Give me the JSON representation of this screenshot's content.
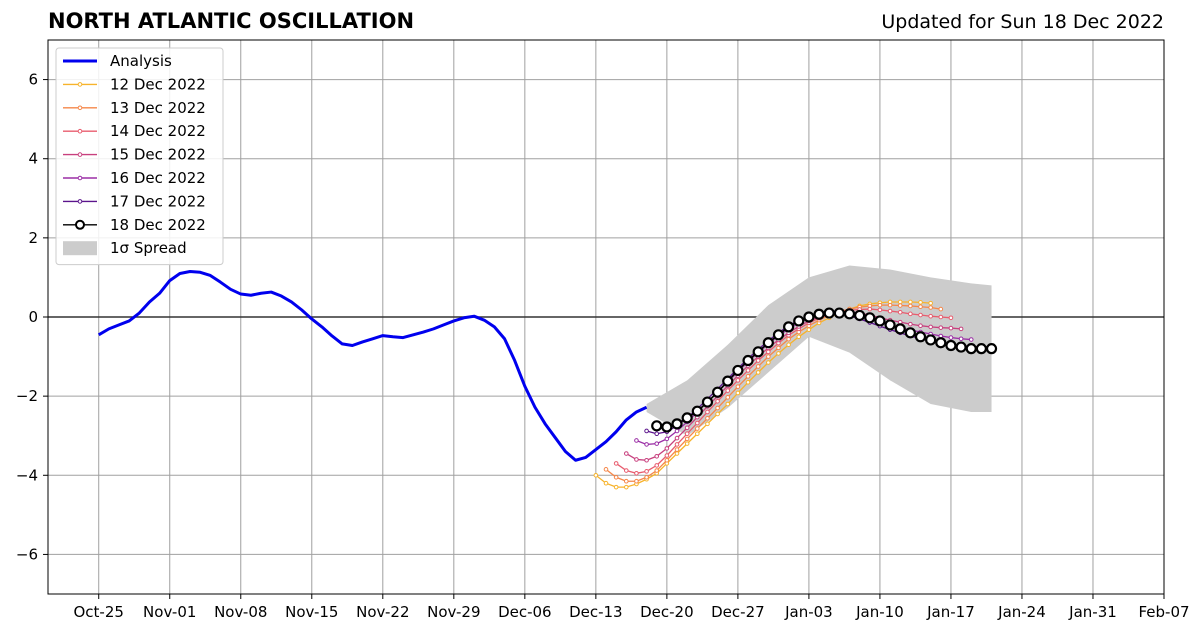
{
  "chart_data": {
    "type": "line",
    "title": "NORTH ATLANTIC OSCILLATION",
    "subtitle": "Updated for Sun 18 Dec 2022",
    "xlabel": "",
    "ylabel": "",
    "x_range": [
      "2022-10-20",
      "2023-02-07"
    ],
    "ylim": [
      -7,
      7
    ],
    "x_ticks": [
      "Oct-25",
      "Nov-01",
      "Nov-08",
      "Nov-15",
      "Nov-22",
      "Nov-29",
      "Dec-06",
      "Dec-13",
      "Dec-20",
      "Dec-27",
      "Jan-03",
      "Jan-10",
      "Jan-17",
      "Jan-24",
      "Jan-31",
      "Feb-07"
    ],
    "y_ticks": [
      -6,
      -4,
      -2,
      0,
      2,
      4,
      6
    ],
    "grid": true,
    "legend_position": "top-left",
    "legend_spread_label": "1σ Spread",
    "spread": {
      "x": [
        "2022-12-18",
        "2022-12-22",
        "2022-12-26",
        "2022-12-30",
        "2023-01-03",
        "2023-01-07",
        "2023-01-11",
        "2023-01-15",
        "2023-01-19",
        "2023-01-21"
      ],
      "upper": [
        -2.2,
        -1.6,
        -0.7,
        0.3,
        1.0,
        1.3,
        1.2,
        1.0,
        0.85,
        0.8
      ],
      "lower": [
        -2.4,
        -3.0,
        -2.3,
        -1.4,
        -0.5,
        -0.9,
        -1.6,
        -2.2,
        -2.4,
        -2.4
      ],
      "color": "#cccccc"
    },
    "analysis": {
      "name": "Analysis",
      "color": "#0000ee",
      "x": [
        "2022-10-25",
        "2022-10-26",
        "2022-10-27",
        "2022-10-28",
        "2022-10-29",
        "2022-10-30",
        "2022-10-31",
        "2022-11-01",
        "2022-11-02",
        "2022-11-03",
        "2022-11-04",
        "2022-11-05",
        "2022-11-06",
        "2022-11-07",
        "2022-11-08",
        "2022-11-09",
        "2022-11-10",
        "2022-11-11",
        "2022-11-12",
        "2022-11-13",
        "2022-11-14",
        "2022-11-15",
        "2022-11-16",
        "2022-11-17",
        "2022-11-18",
        "2022-11-19",
        "2022-11-20",
        "2022-11-21",
        "2022-11-22",
        "2022-11-23",
        "2022-11-24",
        "2022-11-25",
        "2022-11-26",
        "2022-11-27",
        "2022-11-28",
        "2022-11-29",
        "2022-11-30",
        "2022-12-01",
        "2022-12-02",
        "2022-12-03",
        "2022-12-04",
        "2022-12-05",
        "2022-12-06",
        "2022-12-07",
        "2022-12-08",
        "2022-12-09",
        "2022-12-10",
        "2022-12-11",
        "2022-12-12",
        "2022-12-13",
        "2022-12-14",
        "2022-12-15",
        "2022-12-16",
        "2022-12-17",
        "2022-12-18"
      ],
      "y": [
        -0.45,
        -0.3,
        -0.2,
        -0.1,
        0.1,
        0.38,
        0.6,
        0.92,
        1.1,
        1.15,
        1.13,
        1.05,
        0.88,
        0.7,
        0.58,
        0.55,
        0.6,
        0.63,
        0.53,
        0.38,
        0.18,
        -0.05,
        -0.25,
        -0.48,
        -0.68,
        -0.72,
        -0.63,
        -0.55,
        -0.47,
        -0.5,
        -0.52,
        -0.45,
        -0.38,
        -0.3,
        -0.2,
        -0.1,
        -0.02,
        0.02,
        -0.08,
        -0.25,
        -0.55,
        -1.1,
        -1.75,
        -2.28,
        -2.7,
        -3.05,
        -3.4,
        -3.62,
        -3.55,
        -3.35,
        -3.15,
        -2.9,
        -2.6,
        -2.4,
        -2.28
      ]
    },
    "series": [
      {
        "name": "12 Dec 2022",
        "color": "#f7b32b",
        "x": [
          "2022-12-13",
          "2022-12-14",
          "2022-12-15",
          "2022-12-16",
          "2022-12-17",
          "2022-12-18",
          "2022-12-19",
          "2022-12-20",
          "2022-12-21",
          "2022-12-22",
          "2022-12-23",
          "2022-12-24",
          "2022-12-25",
          "2022-12-26",
          "2022-12-27",
          "2022-12-28",
          "2022-12-29",
          "2022-12-30",
          "2022-12-31",
          "2023-01-01",
          "2023-01-02",
          "2023-01-03",
          "2023-01-04",
          "2023-01-05",
          "2023-01-06",
          "2023-01-07",
          "2023-01-08",
          "2023-01-09",
          "2023-01-10",
          "2023-01-11",
          "2023-01-12",
          "2023-01-13",
          "2023-01-14",
          "2023-01-15"
        ],
        "y": [
          -4.0,
          -4.2,
          -4.3,
          -4.3,
          -4.22,
          -4.1,
          -3.95,
          -3.7,
          -3.45,
          -3.2,
          -2.95,
          -2.7,
          -2.45,
          -2.2,
          -1.92,
          -1.65,
          -1.4,
          -1.15,
          -0.92,
          -0.7,
          -0.5,
          -0.32,
          -0.15,
          -0.02,
          0.1,
          0.2,
          0.28,
          0.33,
          0.36,
          0.38,
          0.38,
          0.38,
          0.37,
          0.35
        ]
      },
      {
        "name": "13 Dec 2022",
        "color": "#f5874a",
        "x": [
          "2022-12-14",
          "2022-12-15",
          "2022-12-16",
          "2022-12-17",
          "2022-12-18",
          "2022-12-19",
          "2022-12-20",
          "2022-12-21",
          "2022-12-22",
          "2022-12-23",
          "2022-12-24",
          "2022-12-25",
          "2022-12-26",
          "2022-12-27",
          "2022-12-28",
          "2022-12-29",
          "2022-12-30",
          "2022-12-31",
          "2023-01-01",
          "2023-01-02",
          "2023-01-03",
          "2023-01-04",
          "2023-01-05",
          "2023-01-06",
          "2023-01-07",
          "2023-01-08",
          "2023-01-09",
          "2023-01-10",
          "2023-01-11",
          "2023-01-12",
          "2023-01-13",
          "2023-01-14",
          "2023-01-15",
          "2023-01-16"
        ],
        "y": [
          -3.85,
          -4.05,
          -4.15,
          -4.15,
          -4.05,
          -3.88,
          -3.62,
          -3.35,
          -3.08,
          -2.82,
          -2.56,
          -2.3,
          -2.03,
          -1.76,
          -1.5,
          -1.25,
          -1.0,
          -0.78,
          -0.56,
          -0.38,
          -0.22,
          -0.08,
          0.04,
          0.14,
          0.2,
          0.25,
          0.28,
          0.3,
          0.3,
          0.29,
          0.28,
          0.26,
          0.24,
          0.2
        ]
      },
      {
        "name": "14 Dec 2022",
        "color": "#e85c6e",
        "x": [
          "2022-12-15",
          "2022-12-16",
          "2022-12-17",
          "2022-12-18",
          "2022-12-19",
          "2022-12-20",
          "2022-12-21",
          "2022-12-22",
          "2022-12-23",
          "2022-12-24",
          "2022-12-25",
          "2022-12-26",
          "2022-12-27",
          "2022-12-28",
          "2022-12-29",
          "2022-12-30",
          "2022-12-31",
          "2023-01-01",
          "2023-01-02",
          "2023-01-03",
          "2023-01-04",
          "2023-01-05",
          "2023-01-06",
          "2023-01-07",
          "2023-01-08",
          "2023-01-09",
          "2023-01-10",
          "2023-01-11",
          "2023-01-12",
          "2023-01-13",
          "2023-01-14",
          "2023-01-15",
          "2023-01-16",
          "2023-01-17"
        ],
        "y": [
          -3.7,
          -3.88,
          -3.95,
          -3.9,
          -3.75,
          -3.5,
          -3.22,
          -2.95,
          -2.68,
          -2.4,
          -2.13,
          -1.86,
          -1.6,
          -1.35,
          -1.1,
          -0.88,
          -0.66,
          -0.46,
          -0.3,
          -0.15,
          -0.03,
          0.06,
          0.13,
          0.17,
          0.19,
          0.2,
          0.18,
          0.15,
          0.12,
          0.08,
          0.05,
          0.02,
          0.0,
          -0.02
        ]
      },
      {
        "name": "15 Dec 2022",
        "color": "#c8407e",
        "x": [
          "2022-12-16",
          "2022-12-17",
          "2022-12-18",
          "2022-12-19",
          "2022-12-20",
          "2022-12-21",
          "2022-12-22",
          "2022-12-23",
          "2022-12-24",
          "2022-12-25",
          "2022-12-26",
          "2022-12-27",
          "2022-12-28",
          "2022-12-29",
          "2022-12-30",
          "2022-12-31",
          "2023-01-01",
          "2023-01-02",
          "2023-01-03",
          "2023-01-04",
          "2023-01-05",
          "2023-01-06",
          "2023-01-07",
          "2023-01-08",
          "2023-01-09",
          "2023-01-10",
          "2023-01-11",
          "2023-01-12",
          "2023-01-13",
          "2023-01-14",
          "2023-01-15",
          "2023-01-16",
          "2023-01-17",
          "2023-01-18"
        ],
        "y": [
          -3.45,
          -3.6,
          -3.62,
          -3.52,
          -3.32,
          -3.06,
          -2.8,
          -2.53,
          -2.26,
          -2.0,
          -1.74,
          -1.48,
          -1.23,
          -1.0,
          -0.78,
          -0.58,
          -0.4,
          -0.24,
          -0.1,
          0.0,
          0.08,
          0.12,
          0.13,
          0.1,
          0.05,
          -0.02,
          -0.08,
          -0.13,
          -0.18,
          -0.22,
          -0.25,
          -0.27,
          -0.28,
          -0.3
        ]
      },
      {
        "name": "16 Dec 2022",
        "color": "#9b2fa6",
        "x": [
          "2022-12-17",
          "2022-12-18",
          "2022-12-19",
          "2022-12-20",
          "2022-12-21",
          "2022-12-22",
          "2022-12-23",
          "2022-12-24",
          "2022-12-25",
          "2022-12-26",
          "2022-12-27",
          "2022-12-28",
          "2022-12-29",
          "2022-12-30",
          "2022-12-31",
          "2023-01-01",
          "2023-01-02",
          "2023-01-03",
          "2023-01-04",
          "2023-01-05",
          "2023-01-06",
          "2023-01-07",
          "2023-01-08",
          "2023-01-09",
          "2023-01-10",
          "2023-01-11",
          "2023-01-12",
          "2023-01-13",
          "2023-01-14",
          "2023-01-15",
          "2023-01-16",
          "2023-01-17",
          "2023-01-18",
          "2023-01-19"
        ],
        "y": [
          -3.12,
          -3.22,
          -3.2,
          -3.08,
          -2.88,
          -2.65,
          -2.4,
          -2.15,
          -1.9,
          -1.64,
          -1.38,
          -1.13,
          -0.9,
          -0.68,
          -0.48,
          -0.3,
          -0.15,
          -0.03,
          0.06,
          0.1,
          0.1,
          0.07,
          0.02,
          -0.05,
          -0.12,
          -0.2,
          -0.27,
          -0.33,
          -0.38,
          -0.43,
          -0.48,
          -0.52,
          -0.55,
          -0.57
        ]
      },
      {
        "name": "17 Dec 2022",
        "color": "#5b148c",
        "x": [
          "2022-12-18",
          "2022-12-19",
          "2022-12-20",
          "2022-12-21",
          "2022-12-22",
          "2022-12-23",
          "2022-12-24",
          "2022-12-25",
          "2022-12-26",
          "2022-12-27",
          "2022-12-28",
          "2022-12-29",
          "2022-12-30",
          "2022-12-31",
          "2023-01-01",
          "2023-01-02",
          "2023-01-03",
          "2023-01-04",
          "2023-01-05",
          "2023-01-06",
          "2023-01-07",
          "2023-01-08",
          "2023-01-09",
          "2023-01-10",
          "2023-01-11",
          "2023-01-12",
          "2023-01-13",
          "2023-01-14",
          "2023-01-15",
          "2023-01-16",
          "2023-01-17",
          "2023-01-18",
          "2023-01-19",
          "2023-01-20"
        ],
        "y": [
          -2.88,
          -2.95,
          -2.9,
          -2.75,
          -2.55,
          -2.32,
          -2.07,
          -1.82,
          -1.56,
          -1.3,
          -1.05,
          -0.82,
          -0.6,
          -0.4,
          -0.22,
          -0.08,
          0.03,
          0.1,
          0.12,
          0.09,
          0.03,
          -0.05,
          -0.14,
          -0.23,
          -0.32,
          -0.4,
          -0.48,
          -0.55,
          -0.61,
          -0.66,
          -0.7,
          -0.73,
          -0.75,
          -0.76
        ]
      },
      {
        "name": "18 Dec 2022",
        "color": "#000000",
        "x": [
          "2022-12-19",
          "2022-12-20",
          "2022-12-21",
          "2022-12-22",
          "2022-12-23",
          "2022-12-24",
          "2022-12-25",
          "2022-12-26",
          "2022-12-27",
          "2022-12-28",
          "2022-12-29",
          "2022-12-30",
          "2022-12-31",
          "2023-01-01",
          "2023-01-02",
          "2023-01-03",
          "2023-01-04",
          "2023-01-05",
          "2023-01-06",
          "2023-01-07",
          "2023-01-08",
          "2023-01-09",
          "2023-01-10",
          "2023-01-11",
          "2023-01-12",
          "2023-01-13",
          "2023-01-14",
          "2023-01-15",
          "2023-01-16",
          "2023-01-17",
          "2023-01-18",
          "2023-01-19",
          "2023-01-20",
          "2023-01-21"
        ],
        "y": [
          -2.75,
          -2.78,
          -2.7,
          -2.55,
          -2.38,
          -2.15,
          -1.9,
          -1.62,
          -1.35,
          -1.1,
          -0.88,
          -0.65,
          -0.45,
          -0.25,
          -0.1,
          0.0,
          0.07,
          0.1,
          0.1,
          0.08,
          0.04,
          -0.02,
          -0.1,
          -0.2,
          -0.3,
          -0.4,
          -0.5,
          -0.58,
          -0.65,
          -0.72,
          -0.76,
          -0.8,
          -0.8,
          -0.8
        ]
      }
    ]
  }
}
